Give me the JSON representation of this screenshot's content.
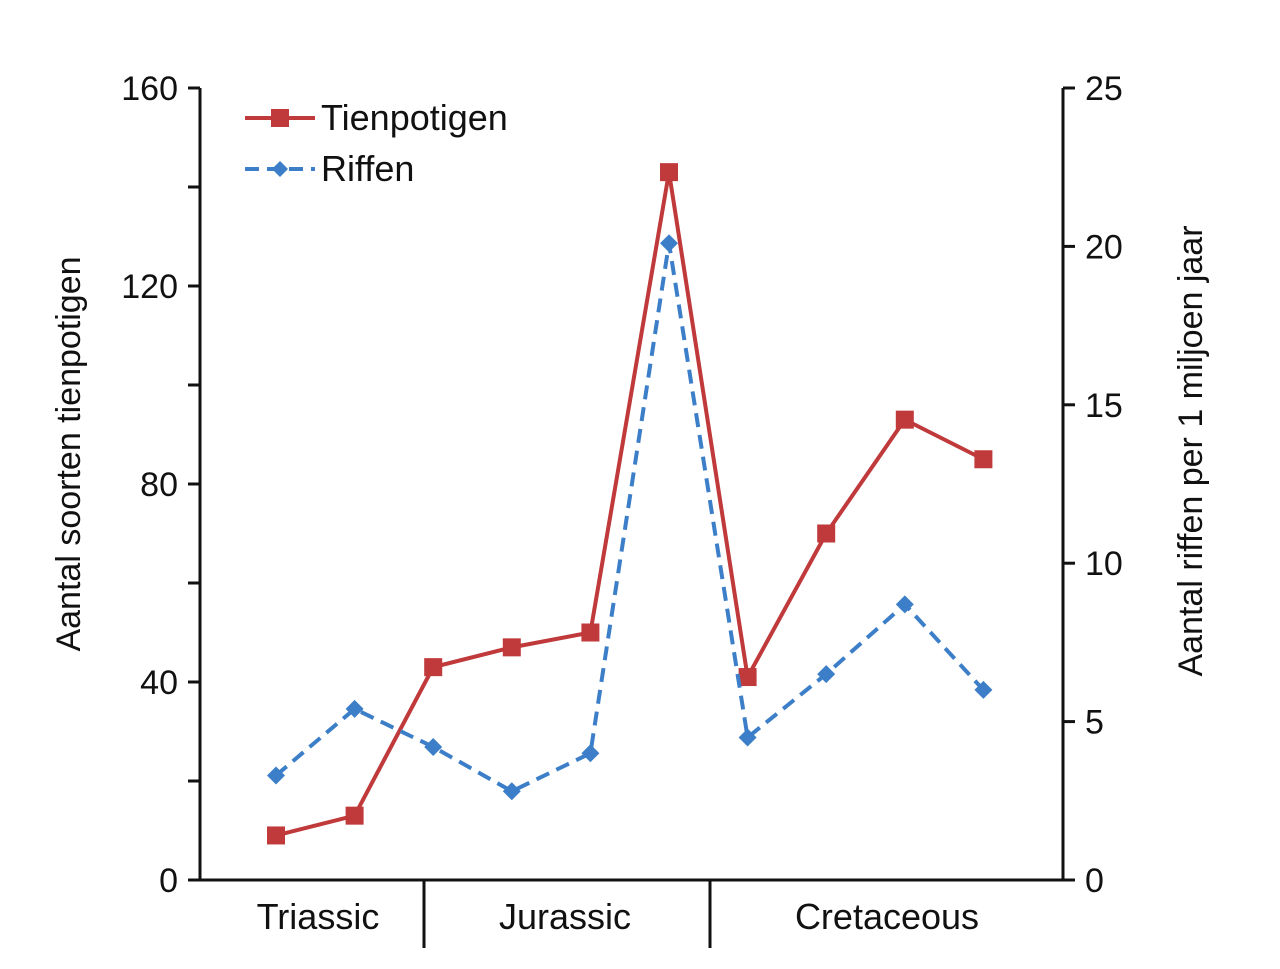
{
  "chart_data": {
    "type": "line",
    "periods": [
      "Triassic",
      "Jurassic",
      "Cretaceous"
    ],
    "x": [
      1,
      2,
      3,
      4,
      5,
      6,
      7,
      8,
      9,
      10
    ],
    "ylabel": "Aantal soorten tienpotigen",
    "y2label": "Aantal riffen per 1 miljoen jaar",
    "ylim": [
      0,
      160
    ],
    "y2lim": [
      0,
      25
    ],
    "yticks": [
      0,
      40,
      80,
      120,
      160
    ],
    "y2ticks": [
      0,
      5,
      10,
      15,
      20,
      25
    ],
    "grid": false,
    "legend_position": "top-left",
    "series": [
      {
        "name": "Tienpotigen",
        "axis": "left",
        "color": "#c0393b",
        "style": "solid",
        "marker": "square",
        "values": [
          9,
          13,
          43,
          47,
          50,
          143,
          41,
          70,
          93,
          85
        ]
      },
      {
        "name": "Riffen",
        "axis": "right",
        "color": "#3c7fc8",
        "style": "dashed",
        "marker": "diamond",
        "values": [
          3.3,
          5.4,
          4.2,
          2.8,
          4.0,
          20.1,
          4.5,
          6.5,
          8.7,
          6.0
        ]
      }
    ]
  }
}
